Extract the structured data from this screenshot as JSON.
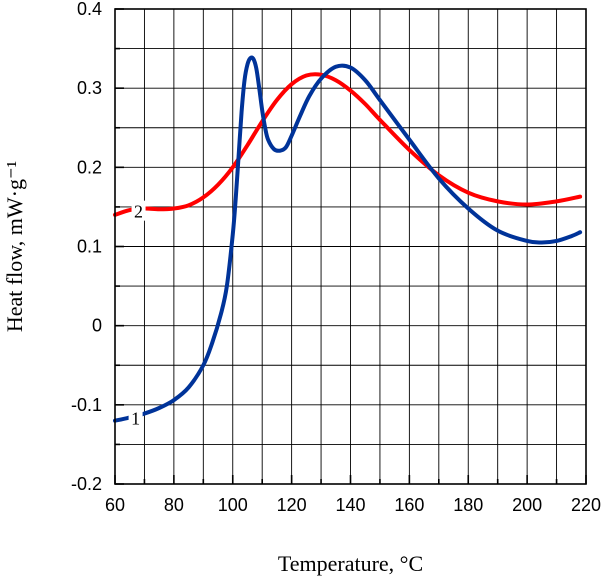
{
  "chart_data": {
    "type": "line",
    "title": "",
    "xlabel": "Temperature, °C",
    "ylabel": "Heat flow, mW·g⁻¹",
    "xlim": [
      60,
      220
    ],
    "ylim": [
      -0.2,
      0.4
    ],
    "x_ticks": [
      60,
      80,
      100,
      120,
      140,
      160,
      180,
      200,
      220
    ],
    "x_tick_labels": [
      "60",
      "80",
      "100",
      "120",
      "140",
      "160",
      "180",
      "200",
      "220"
    ],
    "y_ticks": [
      -0.2,
      -0.1,
      0,
      0.1,
      0.2,
      0.3,
      0.4
    ],
    "y_tick_labels": [
      "-0.2",
      "-0.1",
      "0",
      "0.1",
      "0.2",
      "0.3",
      "0.4"
    ],
    "grid": true,
    "series": [
      {
        "name": "1",
        "label": "1",
        "color": "#003399",
        "label_at": [
          67,
          -0.117
        ],
        "x": [
          60,
          65,
          70,
          75,
          80,
          85,
          90,
          93,
          96,
          98,
          100,
          101,
          102,
          103,
          104,
          105,
          106,
          107,
          108,
          109,
          110,
          111,
          112,
          114,
          116,
          118,
          120,
          123,
          126,
          130,
          135,
          140,
          145,
          150,
          160,
          170,
          180,
          190,
          200,
          205,
          210,
          215,
          218
        ],
        "y": [
          -0.12,
          -0.116,
          -0.111,
          -0.104,
          -0.094,
          -0.078,
          -0.05,
          -0.022,
          0.015,
          0.05,
          0.115,
          0.16,
          0.215,
          0.27,
          0.31,
          0.33,
          0.338,
          0.337,
          0.325,
          0.3,
          0.272,
          0.25,
          0.235,
          0.223,
          0.221,
          0.225,
          0.24,
          0.266,
          0.29,
          0.312,
          0.327,
          0.326,
          0.31,
          0.285,
          0.235,
          0.186,
          0.148,
          0.12,
          0.107,
          0.105,
          0.107,
          0.113,
          0.118
        ]
      },
      {
        "name": "2",
        "label": "2",
        "color": "#ff0000",
        "label_at": [
          68,
          0.144
        ],
        "x": [
          60,
          65,
          70,
          75,
          80,
          85,
          90,
          95,
          100,
          105,
          110,
          115,
          120,
          125,
          130,
          135,
          140,
          145,
          150,
          160,
          170,
          180,
          190,
          200,
          210,
          218
        ],
        "y": [
          0.14,
          0.146,
          0.148,
          0.147,
          0.148,
          0.152,
          0.162,
          0.178,
          0.2,
          0.228,
          0.258,
          0.285,
          0.305,
          0.316,
          0.317,
          0.31,
          0.297,
          0.28,
          0.26,
          0.222,
          0.19,
          0.168,
          0.157,
          0.153,
          0.157,
          0.163
        ]
      }
    ]
  }
}
